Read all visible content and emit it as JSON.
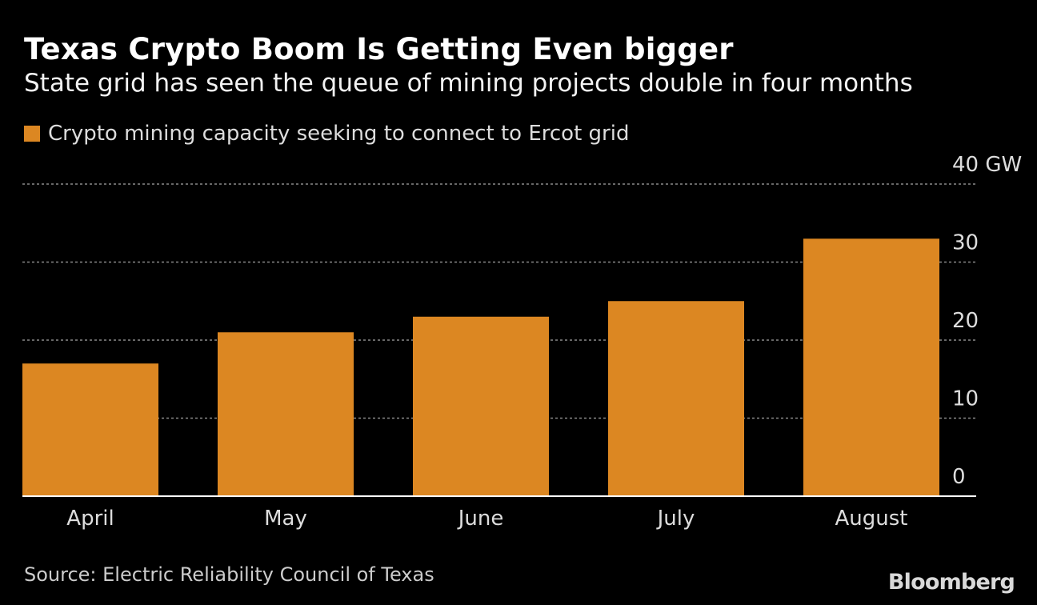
{
  "header": {
    "title": "Texas Crypto Boom Is Getting Even bigger",
    "subtitle": "State grid has seen the queue of mining projects double in four months"
  },
  "legend": {
    "label": "Crypto mining capacity seeking to connect to Ercot grid"
  },
  "footer": {
    "source": "Source: Electric Reliability Council of Texas",
    "brand": "Bloomberg"
  },
  "colors": {
    "bar": "#dc8722",
    "background": "#000000",
    "grid": "#8a8a8a",
    "baseline": "#ffffff"
  },
  "chart_data": {
    "type": "bar",
    "title": "Texas Crypto Boom Is Getting Even bigger",
    "categories": [
      "April",
      "May",
      "June",
      "July",
      "August"
    ],
    "series": [
      {
        "name": "Crypto mining capacity seeking to connect to Ercot grid",
        "values": [
          17,
          21,
          23,
          25,
          33
        ]
      }
    ],
    "ylabel": "GW",
    "y_unit": "GW",
    "ylim": [
      0,
      40
    ],
    "yticks": [
      0,
      10,
      20,
      30,
      40
    ],
    "ytick_labels": [
      "0",
      "10",
      "20",
      "30",
      "40 GW"
    ],
    "grid": true,
    "y_axis_side": "right"
  }
}
